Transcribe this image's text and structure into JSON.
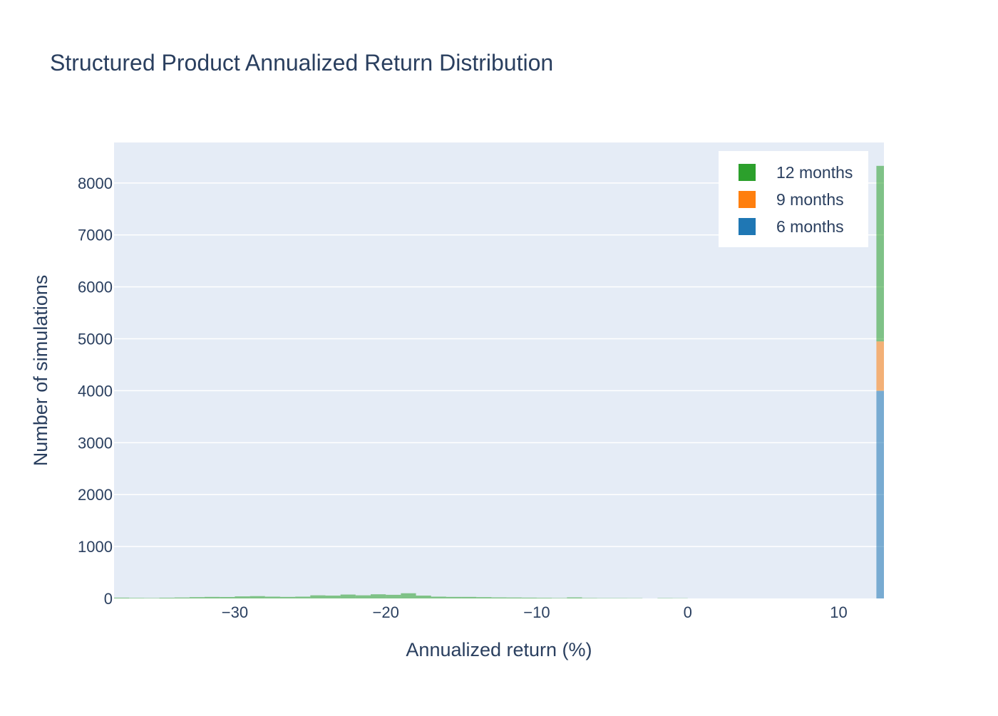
{
  "chart_data": {
    "type": "bar",
    "title": "Structured Product Annualized Return Distribution",
    "xlabel": "Annualized return (%)",
    "ylabel": "Number of simulations",
    "barmode": "stack",
    "histogram": true,
    "xlim": [
      -38,
      13
    ],
    "ylim": [
      0,
      8780
    ],
    "x_ticks": [
      -30,
      -20,
      -10,
      0,
      10
    ],
    "x_tick_labels": [
      "−30",
      "−20",
      "−10",
      "0",
      "10"
    ],
    "y_ticks": [
      0,
      1000,
      2000,
      3000,
      4000,
      5000,
      6000,
      7000,
      8000
    ],
    "y_tick_labels": [
      "0",
      "1000",
      "2000",
      "3000",
      "4000",
      "5000",
      "6000",
      "7000",
      "8000"
    ],
    "grid": true,
    "legend_position": "top-right",
    "colors": {
      "plot_bg": "#e5ecf6",
      "grid": "#ffffff",
      "text": "#2a3f5f"
    },
    "series": [
      {
        "name": "6 months",
        "color": "#1f77b4",
        "bins": [
          {
            "x0": 12.5,
            "x1": 13.0,
            "count": 4000
          }
        ]
      },
      {
        "name": "9 months",
        "color": "#ff7f0e",
        "bins": [
          {
            "x0": 12.5,
            "x1": 13.0,
            "count": 950
          }
        ]
      },
      {
        "name": "12 months",
        "color": "#2ca02c",
        "bins": [
          {
            "x0": -38.0,
            "x1": -37.0,
            "count": 15
          },
          {
            "x0": -37.0,
            "x1": -36.0,
            "count": 10
          },
          {
            "x0": -36.0,
            "x1": -35.0,
            "count": 8
          },
          {
            "x0": -35.0,
            "x1": -34.0,
            "count": 14
          },
          {
            "x0": -34.0,
            "x1": -33.0,
            "count": 18
          },
          {
            "x0": -33.0,
            "x1": -32.0,
            "count": 25
          },
          {
            "x0": -32.0,
            "x1": -31.0,
            "count": 30
          },
          {
            "x0": -31.0,
            "x1": -30.0,
            "count": 28
          },
          {
            "x0": -30.0,
            "x1": -29.0,
            "count": 40
          },
          {
            "x0": -29.0,
            "x1": -28.0,
            "count": 45
          },
          {
            "x0": -28.0,
            "x1": -27.0,
            "count": 35
          },
          {
            "x0": -27.0,
            "x1": -26.0,
            "count": 30
          },
          {
            "x0": -26.0,
            "x1": -25.0,
            "count": 35
          },
          {
            "x0": -25.0,
            "x1": -24.0,
            "count": 60
          },
          {
            "x0": -24.0,
            "x1": -23.0,
            "count": 55
          },
          {
            "x0": -23.0,
            "x1": -22.0,
            "count": 75
          },
          {
            "x0": -22.0,
            "x1": -21.0,
            "count": 60
          },
          {
            "x0": -21.0,
            "x1": -20.0,
            "count": 80
          },
          {
            "x0": -20.0,
            "x1": -19.0,
            "count": 70
          },
          {
            "x0": -19.0,
            "x1": -18.0,
            "count": 100
          },
          {
            "x0": -18.0,
            "x1": -17.0,
            "count": 55
          },
          {
            "x0": -17.0,
            "x1": -16.0,
            "count": 35
          },
          {
            "x0": -16.0,
            "x1": -15.0,
            "count": 30
          },
          {
            "x0": -15.0,
            "x1": -14.0,
            "count": 30
          },
          {
            "x0": -14.0,
            "x1": -13.0,
            "count": 25
          },
          {
            "x0": -13.0,
            "x1": -12.0,
            "count": 20
          },
          {
            "x0": -12.0,
            "x1": -11.0,
            "count": 18
          },
          {
            "x0": -11.0,
            "x1": -10.0,
            "count": 15
          },
          {
            "x0": -10.0,
            "x1": -9.0,
            "count": 12
          },
          {
            "x0": -9.0,
            "x1": -8.0,
            "count": 8
          },
          {
            "x0": -8.0,
            "x1": -7.0,
            "count": 20
          },
          {
            "x0": -7.0,
            "x1": -6.0,
            "count": 8
          },
          {
            "x0": -6.0,
            "x1": -5.0,
            "count": 6
          },
          {
            "x0": -5.0,
            "x1": -4.0,
            "count": 6
          },
          {
            "x0": -4.0,
            "x1": -3.0,
            "count": 5
          },
          {
            "x0": -2.0,
            "x1": -1.0,
            "count": 6
          },
          {
            "x0": -1.0,
            "x1": 0.0,
            "count": 4
          },
          {
            "x0": 12.5,
            "x1": 13.0,
            "count": 3380
          }
        ]
      }
    ],
    "legend_order": [
      "12 months",
      "9 months",
      "6 months"
    ]
  }
}
